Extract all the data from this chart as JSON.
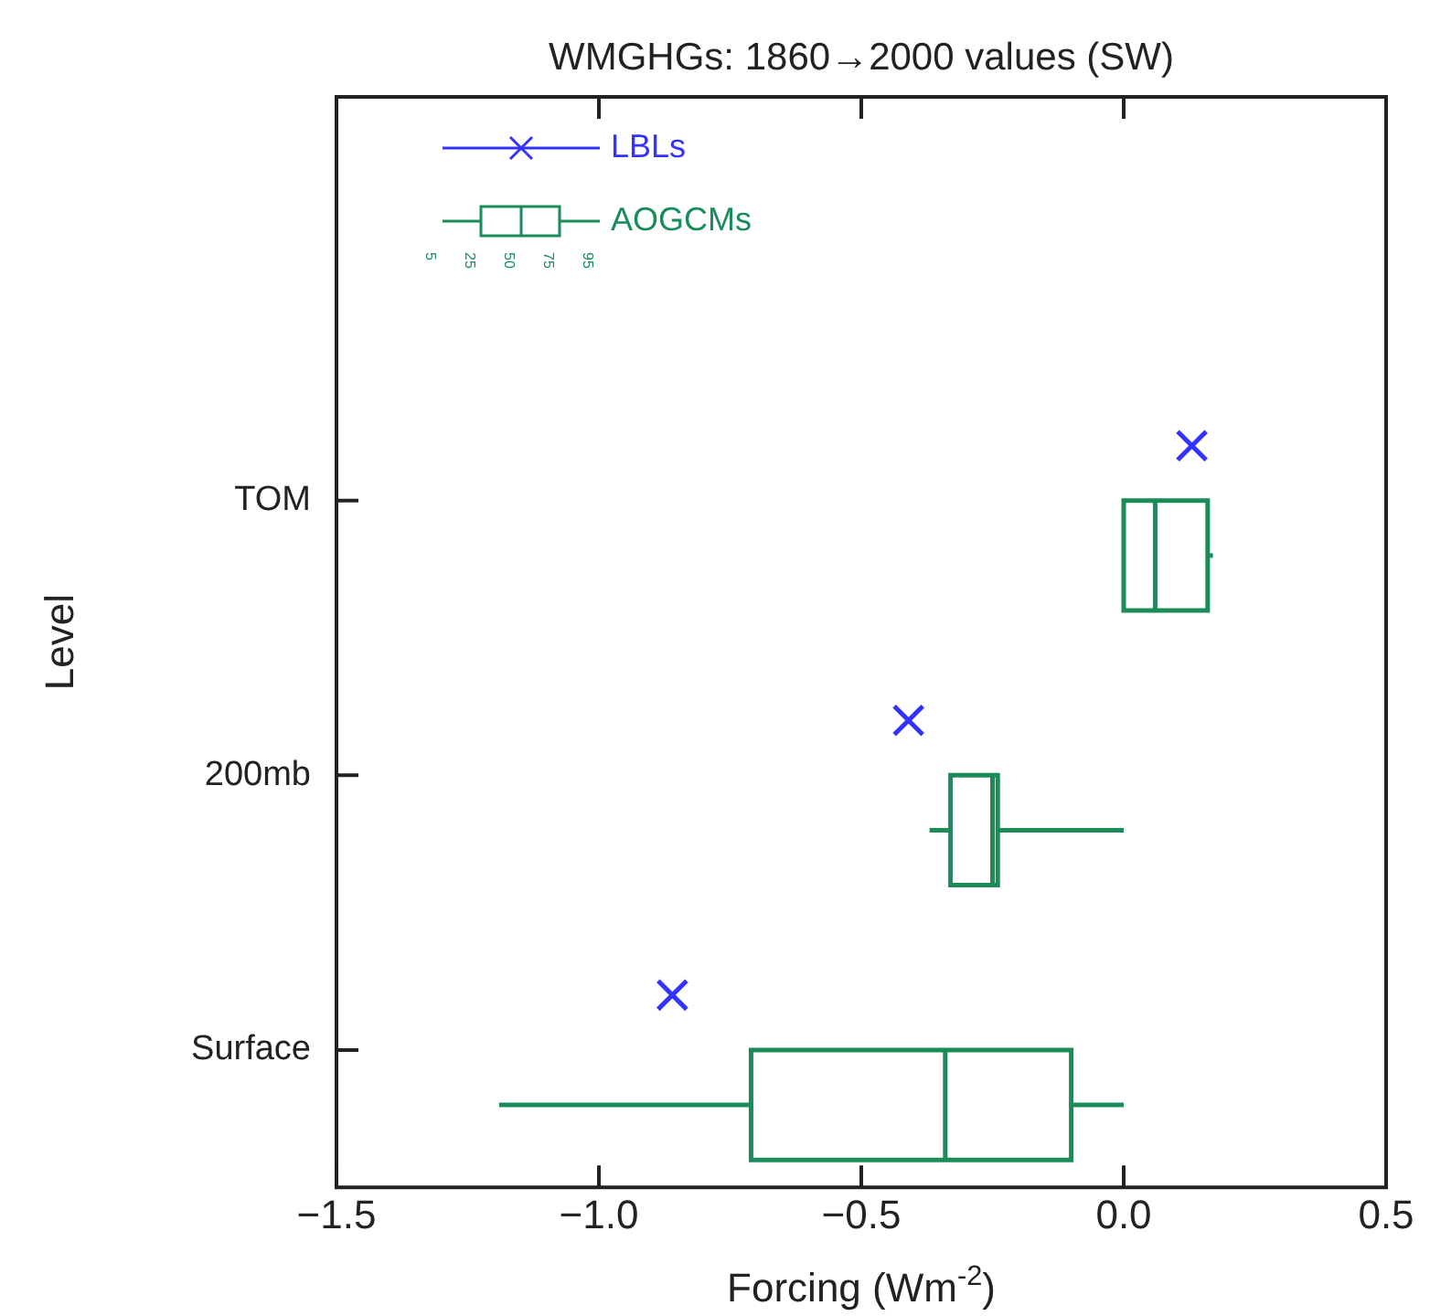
{
  "chart_data": {
    "type": "box",
    "orientation": "horizontal",
    "title": "WMGHGs: 1860→2000 values (SW)",
    "xlabel": "Forcing (Wm$^{-2}$)",
    "ylabel": "Level",
    "categories": [
      "TOM",
      "200mb",
      "Surface"
    ],
    "xlim": [
      -1.5,
      0.5
    ],
    "xticks": [
      {
        "value": -1.5,
        "label": "−1.5"
      },
      {
        "value": -1,
        "label": "−1.0"
      },
      {
        "value": -0.5,
        "label": "−0.5"
      },
      {
        "value": 0,
        "label": "0.0"
      },
      {
        "value": 0.5,
        "label": "0.5"
      }
    ],
    "legend": "top left",
    "grid": false,
    "series": [
      {
        "name": "LBLs",
        "type": "scatter",
        "marker": "cross",
        "color": "#3333ff",
        "x": [
          "TOM",
          "200mb",
          "Surface"
        ],
        "values": [
          0.13,
          -0.41,
          -0.86
        ]
      },
      {
        "name": "AOGCMs",
        "color": "#1a8c5a",
        "boxes": [
          {
            "low": 0.0,
            "q1": 0.0,
            "median": 0.06,
            "q3": 0.16,
            "high": 0.17
          },
          {
            "low": -0.37,
            "q1": -0.33,
            "median": -0.25,
            "q3": -0.24,
            "high": 0.0
          },
          {
            "low": -1.19,
            "q1": -0.71,
            "median": -0.34,
            "q3": -0.1,
            "high": 0.0
          }
        ]
      }
    ],
    "annotations": [
      "5",
      "25",
      "50",
      "75",
      "95"
    ]
  }
}
